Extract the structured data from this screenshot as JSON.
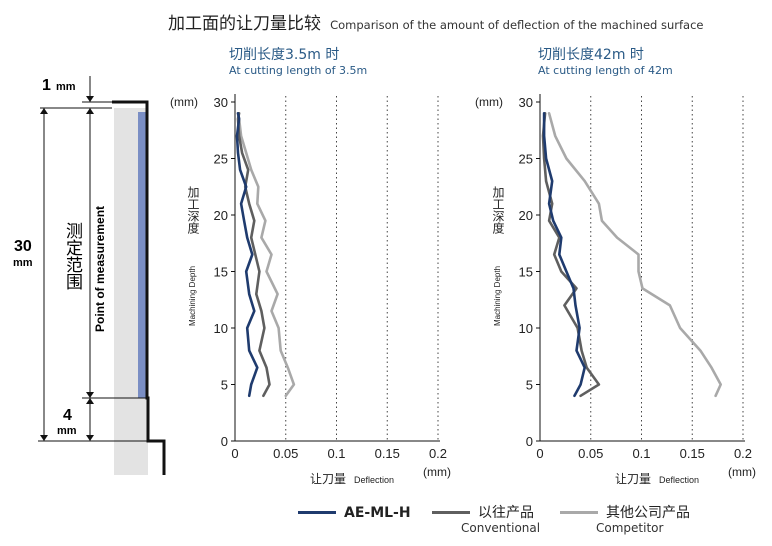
{
  "header": {
    "title_cn": "加工面的让刀量比较",
    "title_en": "Comparison of the amount of deflection of the machined surface"
  },
  "diagram": {
    "top_dim": "1",
    "top_unit": "mm",
    "span_dim": "30",
    "span_unit": "mm",
    "bottom_dim": "4",
    "bottom_unit": "mm",
    "range_label_cn": "测定范围",
    "range_label_en": "Point of measurement"
  },
  "panels": [
    {
      "title_cn": "切削长度3.5m 时",
      "title_en": "At cutting length of 3.5m"
    },
    {
      "title_cn": "切削长度42m 时",
      "title_en": "At cutting length of 42m"
    }
  ],
  "axis_text": {
    "y_unit": "(mm)",
    "x_unit": "(mm)",
    "ylabel_cn": "加工深度",
    "ylabel_en": "Machining Depth",
    "xlabel_cn": "让刀量",
    "xlabel_en": "Deflection"
  },
  "legend": [
    {
      "label": "AE-ML-H",
      "sub": ""
    },
    {
      "label": "以往产品",
      "sub": "Conventional"
    },
    {
      "label": "其他公司产品",
      "sub": "Competitor"
    }
  ],
  "colors": {
    "ae_ml_h": "#1f3b6e",
    "conventional": "#5f5f5f",
    "competitor": "#a9a9a9",
    "caption": "#2a5a86",
    "tool_bar": "#7a8ec4",
    "tool_body": "#e3e3e3"
  },
  "chart_data": [
    {
      "type": "line",
      "title": "切削长度3.5m 时",
      "xlabel": "让刀量 Deflection",
      "ylabel": "加工深度 Machining Depth",
      "xlim": [
        0,
        0.2
      ],
      "ylim": [
        0,
        30
      ],
      "xticks": [
        "0",
        "0.05",
        "0.1",
        "0.15",
        "0.2"
      ],
      "yticks": [
        "0",
        "5",
        "10",
        "15",
        "20",
        "25",
        "30"
      ],
      "grid": "vertical dotted",
      "series": [
        {
          "name": "AE-ML-H",
          "x": [
            0.014,
            0.016,
            0.022,
            0.014,
            0.012,
            0.019,
            0.014,
            0.011,
            0.017,
            0.012,
            0.009,
            0.006,
            0.011,
            0.005,
            0.003,
            0.002,
            0.004,
            0.003
          ],
          "y": [
            4,
            5,
            6.5,
            8,
            10,
            11.5,
            13,
            15,
            16.5,
            18,
            19.5,
            21,
            22.5,
            24,
            25.5,
            27,
            28.5,
            29
          ]
        },
        {
          "name": "以往产品",
          "x": [
            0.028,
            0.034,
            0.031,
            0.024,
            0.029,
            0.026,
            0.021,
            0.024,
            0.02,
            0.016,
            0.019,
            0.014,
            0.01,
            0.013,
            0.007,
            0.004,
            0.003,
            0.004
          ],
          "y": [
            4,
            5,
            6.5,
            8,
            10,
            11.5,
            13,
            15,
            16.5,
            18,
            19.5,
            21,
            22.5,
            24,
            25.5,
            27,
            28.5,
            29
          ]
        },
        {
          "name": "其他公司产品",
          "x": [
            0.05,
            0.058,
            0.052,
            0.045,
            0.043,
            0.036,
            0.042,
            0.031,
            0.036,
            0.026,
            0.03,
            0.022,
            0.023,
            0.016,
            0.011,
            0.006,
            0.004,
            0.003
          ],
          "y": [
            4,
            5,
            6.5,
            8,
            10,
            11.5,
            13,
            15,
            16.5,
            18,
            19.5,
            21,
            22.5,
            24,
            25.5,
            27,
            28.5,
            29
          ]
        }
      ]
    },
    {
      "type": "line",
      "title": "切削长度42m 时",
      "xlabel": "让刀量 Deflection",
      "ylabel": "加工深度 Machining Depth",
      "xlim": [
        0,
        0.2
      ],
      "ylim": [
        0,
        30
      ],
      "xticks": [
        "0",
        "0.05",
        "0.1",
        "0.15",
        "0.2"
      ],
      "yticks": [
        "0",
        "5",
        "10",
        "15",
        "20",
        "25",
        "30"
      ],
      "grid": "vertical dotted",
      "series": [
        {
          "name": "AE-ML-H",
          "x": [
            0.034,
            0.04,
            0.044,
            0.036,
            0.039,
            0.035,
            0.033,
            0.026,
            0.019,
            0.021,
            0.013,
            0.009,
            0.012,
            0.006,
            0.004,
            0.004
          ],
          "y": [
            4,
            5,
            6.5,
            8,
            10,
            12,
            13.5,
            15,
            16.5,
            18,
            19.5,
            21,
            23,
            25,
            27,
            29
          ]
        },
        {
          "name": "以往产品",
          "x": [
            0.04,
            0.058,
            0.046,
            0.041,
            0.037,
            0.024,
            0.036,
            0.021,
            0.014,
            0.019,
            0.009,
            0.012,
            0.006,
            0.004,
            0.003,
            0.005
          ],
          "y": [
            4,
            5,
            6.5,
            8,
            10,
            12,
            13.5,
            15,
            16.5,
            18,
            19.5,
            21,
            23,
            25,
            27,
            29
          ]
        },
        {
          "name": "其他公司产品",
          "x": [
            0.173,
            0.178,
            0.169,
            0.158,
            0.138,
            0.128,
            0.101,
            0.097,
            0.097,
            0.076,
            0.061,
            0.058,
            0.044,
            0.026,
            0.015,
            0.009
          ],
          "y": [
            4,
            5,
            6.5,
            8,
            10,
            12,
            13.5,
            15,
            16.5,
            18,
            19.5,
            21,
            23,
            25,
            27,
            29
          ]
        }
      ]
    }
  ]
}
